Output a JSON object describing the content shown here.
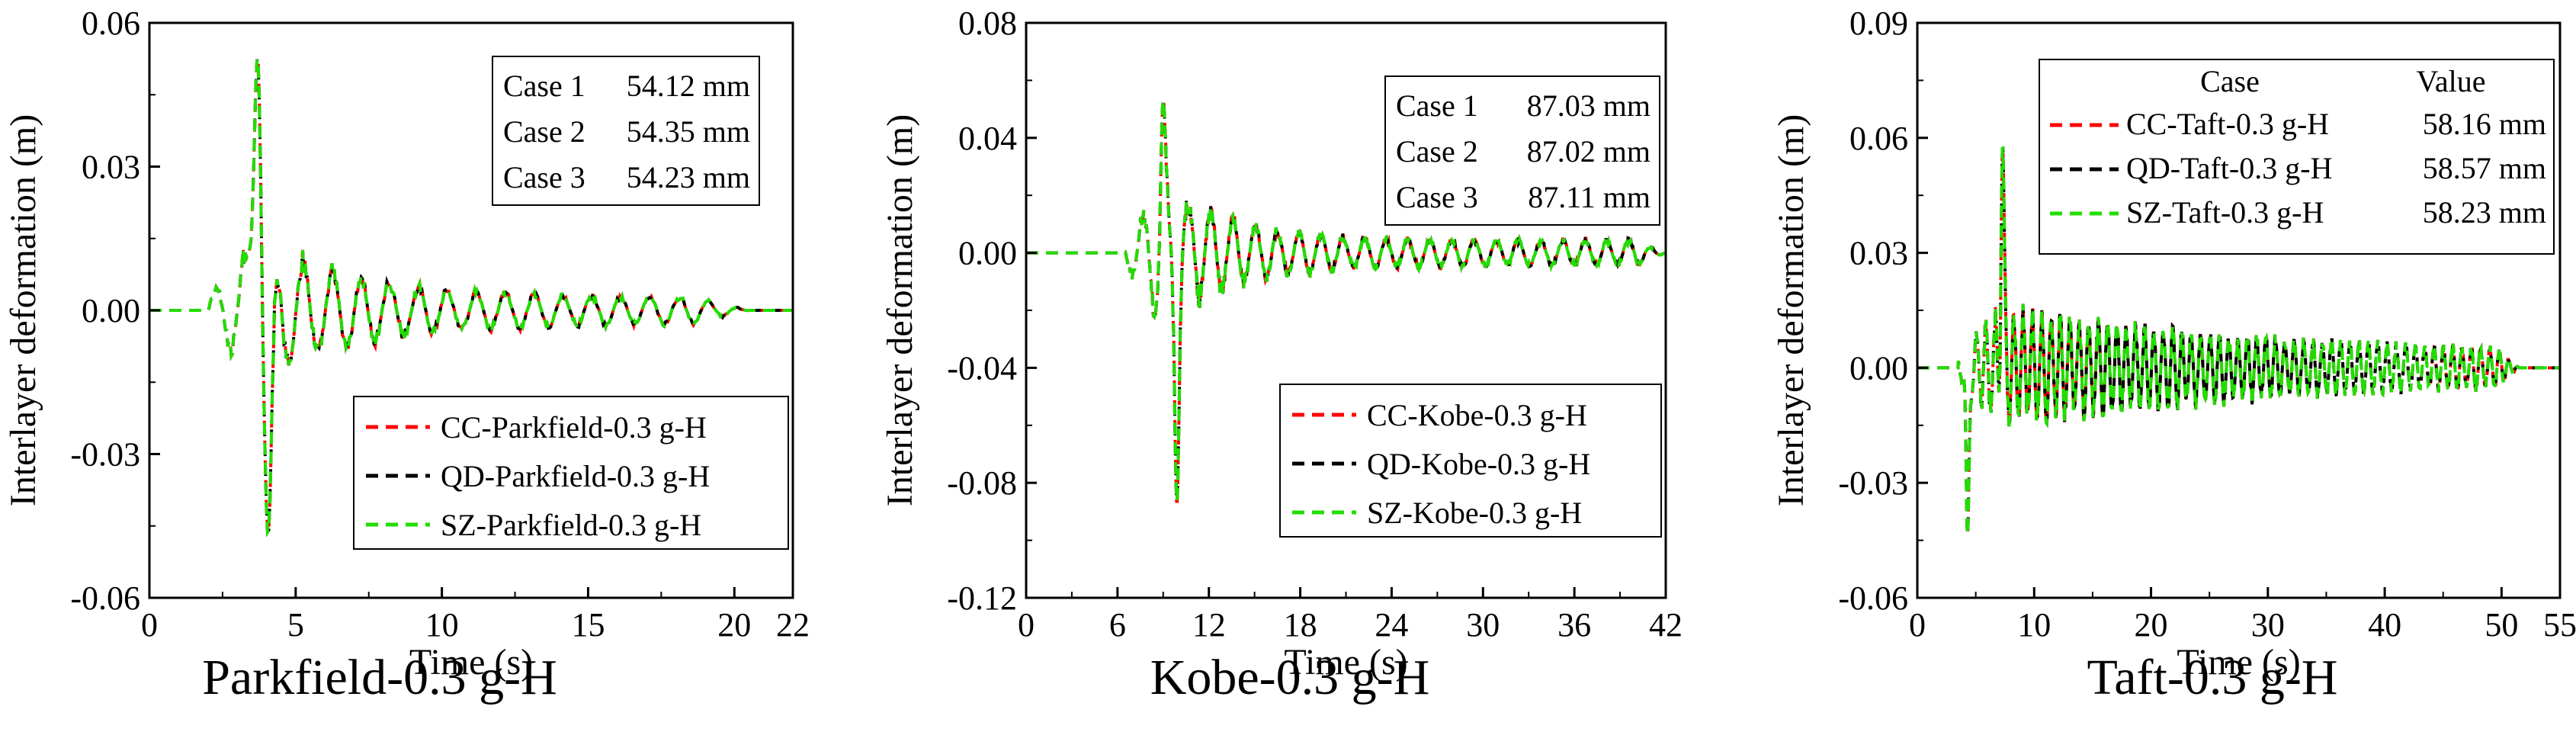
{
  "colors": {
    "series": [
      "#ff0000",
      "#000000",
      "#22dd00"
    ],
    "axis": "#000000",
    "background": "#ffffff"
  },
  "chart_data": [
    {
      "type": "line",
      "caption": "Parkfield-0.3 g-H",
      "xlabel": "Time (s)",
      "ylabel": "Interlayer deformation (m)",
      "xlim": [
        0,
        22
      ],
      "ylim": [
        -0.06,
        0.06
      ],
      "xticks": [
        0,
        5,
        10,
        15,
        20,
        22
      ],
      "xtick_labels": [
        "0",
        "5",
        "10",
        "15",
        "20",
        "22"
      ],
      "yticks": [
        -0.06,
        -0.03,
        0.0,
        0.03,
        0.06
      ],
      "ytick_labels": [
        "-0.06",
        "-0.03",
        "0.00",
        "0.03",
        "0.06"
      ],
      "series": [
        {
          "name": "CC-Parkfield-0.3 g-H",
          "peak_mm": 54.12
        },
        {
          "name": "QD-Parkfield-0.3 g-H",
          "peak_mm": 54.35
        },
        {
          "name": "SZ-Parkfield-0.3 g-H",
          "peak_mm": 54.23
        }
      ],
      "legend_position": "bottom-right",
      "annotation": {
        "position": "top-right",
        "header": null,
        "rows": [
          {
            "case": "Case 1",
            "value": "54.12 mm"
          },
          {
            "case": "Case 2",
            "value": "54.35 mm"
          },
          {
            "case": "Case 3",
            "value": "54.23 mm"
          }
        ]
      },
      "wave": {
        "onset": 2.0,
        "peak_time": 3.7,
        "peak_value": 0.054,
        "min_time": 4.05,
        "min_value": -0.048,
        "end": 20.5,
        "period": 1.0,
        "decay": 0.3,
        "seed": 11
      }
    },
    {
      "type": "line",
      "caption": "Kobe-0.3 g-H",
      "xlabel": "Time (s)",
      "ylabel": "Interlayer deformation (m)",
      "xlim": [
        0,
        42
      ],
      "ylim": [
        -0.12,
        0.08
      ],
      "xticks": [
        0,
        6,
        12,
        18,
        24,
        30,
        36,
        42
      ],
      "xtick_labels": [
        "0",
        "6",
        "12",
        "18",
        "24",
        "30",
        "36",
        "42"
      ],
      "yticks": [
        -0.12,
        -0.08,
        -0.04,
        0.0,
        0.04,
        0.08
      ],
      "ytick_labels": [
        "-0.12",
        "-0.08",
        "-0.04",
        "0.00",
        "0.04",
        "0.08"
      ],
      "series": [
        {
          "name": "CC-Kobe-0.3 g-H",
          "peak_mm": 87.03
        },
        {
          "name": "QD-Kobe-0.3 g-H",
          "peak_mm": 87.02
        },
        {
          "name": "SZ-Kobe-0.3 g-H",
          "peak_mm": 87.11
        }
      ],
      "legend_position": "bottom-right",
      "annotation": {
        "position": "top-right",
        "header": null,
        "rows": [
          {
            "case": "Case 1",
            "value": "87.03 mm"
          },
          {
            "case": "Case 2",
            "value": "87.02 mm"
          },
          {
            "case": "Case 3",
            "value": "87.11 mm"
          }
        ]
      },
      "wave": {
        "onset": 6.5,
        "peak_time": 9.0,
        "peak_value": 0.053,
        "min_time": 9.9,
        "min_value": -0.087,
        "end": 42,
        "period": 1.45,
        "decay": 0.22,
        "seed": 23
      }
    },
    {
      "type": "line",
      "caption": "Taft-0.3 g-H",
      "xlabel": "Time (s)",
      "ylabel": "Interlayer deformation (m)",
      "xlim": [
        0,
        55
      ],
      "ylim": [
        -0.06,
        0.09
      ],
      "xticks": [
        0,
        10,
        20,
        30,
        40,
        50,
        55
      ],
      "xtick_labels": [
        "0",
        "10",
        "20",
        "30",
        "40",
        "50",
        "55"
      ],
      "yticks": [
        -0.06,
        -0.03,
        0.0,
        0.03,
        0.06,
        0.09
      ],
      "ytick_labels": [
        "-0.06",
        "-0.03",
        "0.00",
        "0.03",
        "0.06",
        "0.09"
      ],
      "series": [
        {
          "name": "CC-Taft-0.3 g-H",
          "peak_mm": 58.16
        },
        {
          "name": "QD-Taft-0.3 g-H",
          "peak_mm": 58.57
        },
        {
          "name": "SZ-Taft-0.3 g-H",
          "peak_mm": 58.23
        }
      ],
      "legend_position": "top-right",
      "annotation": {
        "position": "top-right",
        "header": {
          "case": "Case",
          "value": "Value"
        },
        "rows": [
          {
            "case": "CC-Taft-0.3 g-H",
            "value": "58.16 mm"
          },
          {
            "case": "QD-Taft-0.3 g-H",
            "value": "58.57 mm"
          },
          {
            "case": "SZ-Taft-0.3 g-H",
            "value": "58.23 mm"
          }
        ]
      },
      "wave": {
        "onset": 3.5,
        "peak_time": 7.3,
        "peak_value": 0.058,
        "min_time": 4.3,
        "min_value": -0.044,
        "end": 51.5,
        "period": 0.8,
        "decay": 0.04,
        "seed": 37
      }
    }
  ]
}
